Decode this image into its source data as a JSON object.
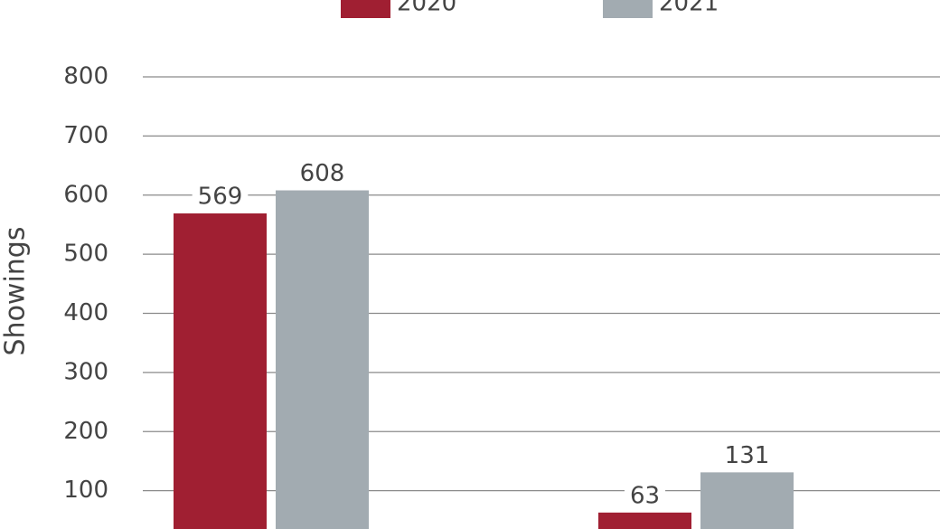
{
  "chart_data": {
    "type": "bar",
    "y_label": "Showings",
    "categories": [
      null,
      null
    ],
    "series": [
      {
        "name": "2020",
        "color": "#a01f32",
        "values": [
          569,
          63
        ]
      },
      {
        "name": "2021",
        "color": "#a2abb1",
        "values": [
          608,
          131
        ]
      }
    ],
    "ylim": [
      0,
      800
    ],
    "yticks": [
      100,
      200,
      300,
      400,
      500,
      600,
      700,
      800
    ],
    "grid": true
  }
}
